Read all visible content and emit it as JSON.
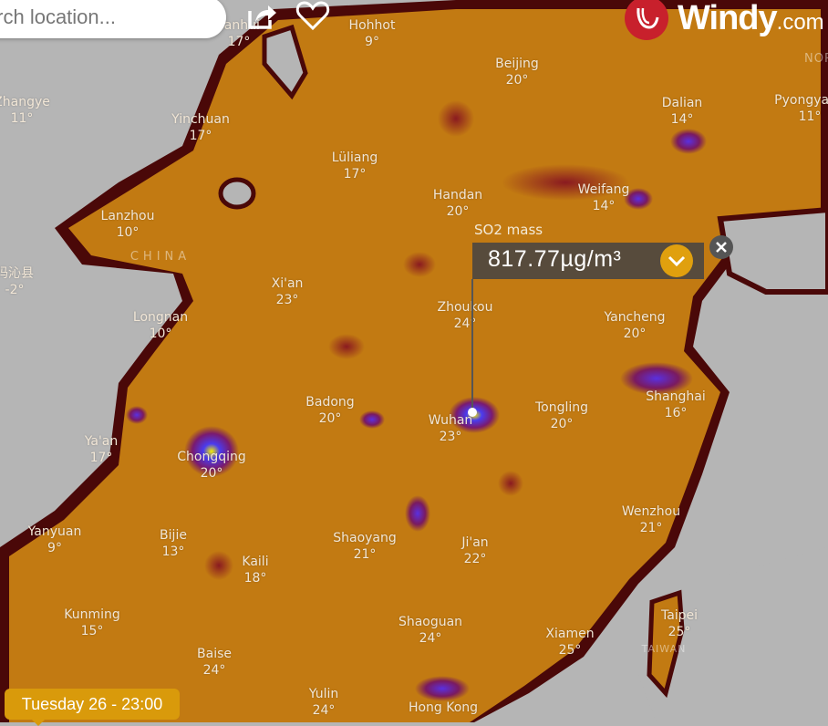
{
  "search": {
    "placeholder": "Search location..."
  },
  "toolbar": {
    "share_icon": "share-icon",
    "favorite_icon": "heart-icon"
  },
  "logo": {
    "brand": "Windy",
    "suffix": ".com"
  },
  "overlay": {
    "layer_label": "SO2 mass",
    "value": "817.77µg/m³",
    "expand_icon": "chevron-down-icon",
    "close_icon": "close-icon"
  },
  "timestamp": "Tuesday 26 - 23:00",
  "colors": {
    "accent": "#d99a0b",
    "logo_red": "#c8202c",
    "land_low": "#c27a12",
    "boundary_dark": "#4a0808",
    "no_data": "#b5b5b5",
    "hotspot": "#5a2ad0"
  },
  "regions": [
    "CHINA",
    "TAIWAN",
    "NOR"
  ],
  "cities": [
    {
      "name": "Yanhui",
      "temp": "17°"
    },
    {
      "name": "Hohhot",
      "temp": "9°"
    },
    {
      "name": "Beijing",
      "temp": "20°"
    },
    {
      "name": "Zhangye",
      "temp": "11°"
    },
    {
      "name": "Yinchuan",
      "temp": "17°"
    },
    {
      "name": "Dalian",
      "temp": "14°"
    },
    {
      "name": "Pyongyang",
      "temp": "11°"
    },
    {
      "name": "Lüliang",
      "temp": "17°"
    },
    {
      "name": "Handan",
      "temp": "20°"
    },
    {
      "name": "Weifang",
      "temp": "14°"
    },
    {
      "name": "Lanzhou",
      "temp": "10°"
    },
    {
      "name": "玛沁县",
      "temp": "-2°"
    },
    {
      "name": "Xi'an",
      "temp": "23°"
    },
    {
      "name": "Zhoukou",
      "temp": "24°"
    },
    {
      "name": "Yancheng",
      "temp": "20°"
    },
    {
      "name": "Longnan",
      "temp": "10°"
    },
    {
      "name": "Badong",
      "temp": "20°"
    },
    {
      "name": "Wuhan",
      "temp": "23°"
    },
    {
      "name": "Tongling",
      "temp": "20°"
    },
    {
      "name": "Shanghai",
      "temp": "16°"
    },
    {
      "name": "Ya'an",
      "temp": "17°"
    },
    {
      "name": "Chongqing",
      "temp": "20°"
    },
    {
      "name": "Wenzhou",
      "temp": "21°"
    },
    {
      "name": "Yanyuan",
      "temp": "9°"
    },
    {
      "name": "Bijie",
      "temp": "13°"
    },
    {
      "name": "Shaoyang",
      "temp": "21°"
    },
    {
      "name": "Ji'an",
      "temp": "22°"
    },
    {
      "name": "Kaili",
      "temp": "18°"
    },
    {
      "name": "Kunming",
      "temp": "15°"
    },
    {
      "name": "Shaoguan",
      "temp": "24°"
    },
    {
      "name": "Xiamen",
      "temp": "25°"
    },
    {
      "name": "Taipei",
      "temp": "25°"
    },
    {
      "name": "Baise",
      "temp": "24°"
    },
    {
      "name": "Yulin",
      "temp": "24°"
    },
    {
      "name": "Hong Kong",
      "temp": ""
    }
  ]
}
